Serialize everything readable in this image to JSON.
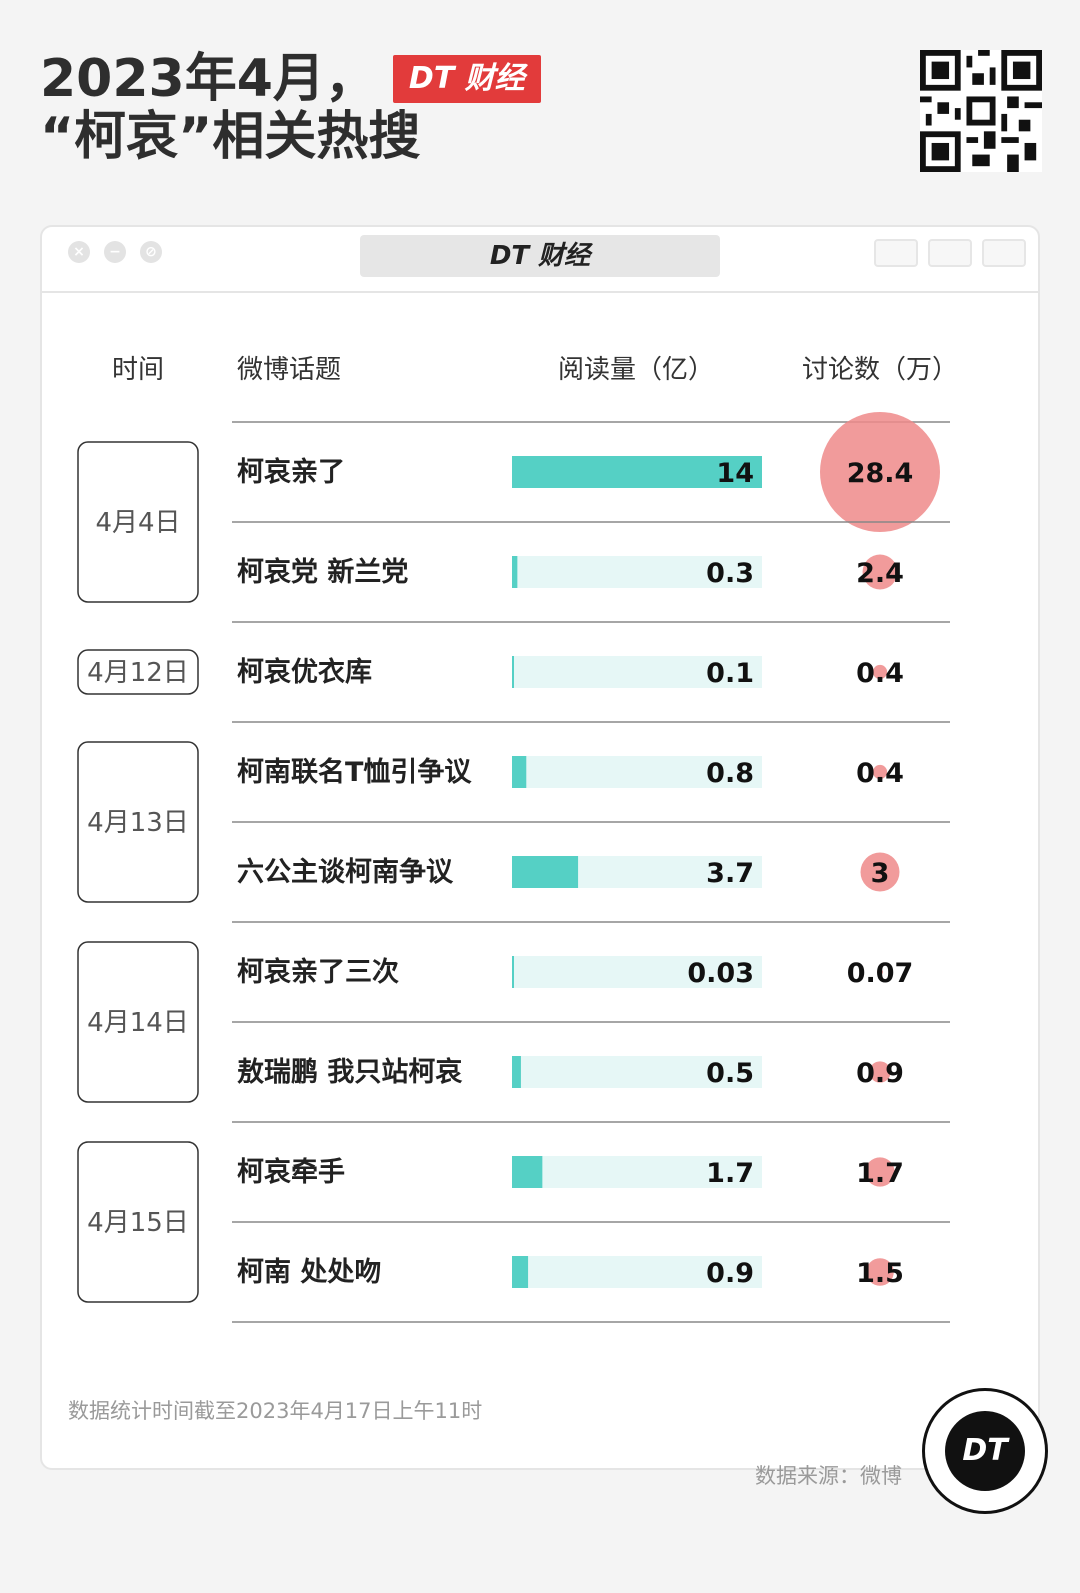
{
  "header": {
    "title_line1": "2023年4月，",
    "title_line2": "“柯哀”相关热搜",
    "brand_badge": "DT 财经"
  },
  "window": {
    "brand": "DT 财经"
  },
  "table": {
    "columns": [
      "时间",
      "微博话题",
      "阅读量（亿）",
      "讨论数（万）"
    ]
  },
  "chart_data": {
    "type": "table",
    "colors": {
      "bar": "#55d0c5",
      "bar_track": "#e6f7f6",
      "bubble": "#ef8a8a"
    },
    "groups": [
      {
        "date": "4月4日",
        "rows": [
          0,
          1
        ]
      },
      {
        "date": "4月12日",
        "rows": [
          2
        ]
      },
      {
        "date": "4月13日",
        "rows": [
          3,
          4
        ]
      },
      {
        "date": "4月14日",
        "rows": [
          5,
          6
        ]
      },
      {
        "date": "4月15日",
        "rows": [
          7,
          8
        ]
      }
    ],
    "rows": [
      {
        "topic": "柯哀亲了",
        "reads": 14,
        "reads_label": "14",
        "discussions": 28.4,
        "discussions_label": "28.4"
      },
      {
        "topic": "柯哀党 新兰党",
        "reads": 0.3,
        "reads_label": "0.3",
        "discussions": 2.4,
        "discussions_label": "2.4"
      },
      {
        "topic": "柯哀优衣库",
        "reads": 0.1,
        "reads_label": "0.1",
        "discussions": 0.4,
        "discussions_label": "0.4"
      },
      {
        "topic": "柯南联名T恤引争议",
        "reads": 0.8,
        "reads_label": "0.8",
        "discussions": 0.4,
        "discussions_label": "0.4"
      },
      {
        "topic": "六公主谈柯南争议",
        "reads": 3.7,
        "reads_label": "3.7",
        "discussions": 3,
        "discussions_label": "3"
      },
      {
        "topic": "柯哀亲了三次",
        "reads": 0.03,
        "reads_label": "0.03",
        "discussions": 0.07,
        "discussions_label": "0.07"
      },
      {
        "topic": "敖瑞鹏 我只站柯哀",
        "reads": 0.5,
        "reads_label": "0.5",
        "discussions": 0.9,
        "discussions_label": "0.9"
      },
      {
        "topic": "柯哀牵手",
        "reads": 1.7,
        "reads_label": "1.7",
        "discussions": 1.7,
        "discussions_label": "1.7"
      },
      {
        "topic": "柯南 处处吻",
        "reads": 0.9,
        "reads_label": "0.9",
        "discussions": 1.5,
        "discussions_label": "1.5"
      }
    ],
    "reads_max": 14,
    "discussions_max": 28.4
  },
  "footer": {
    "note": "数据统计时间截至2023年4月17日上午11时",
    "source": "数据来源：微博",
    "logo": "DT"
  }
}
